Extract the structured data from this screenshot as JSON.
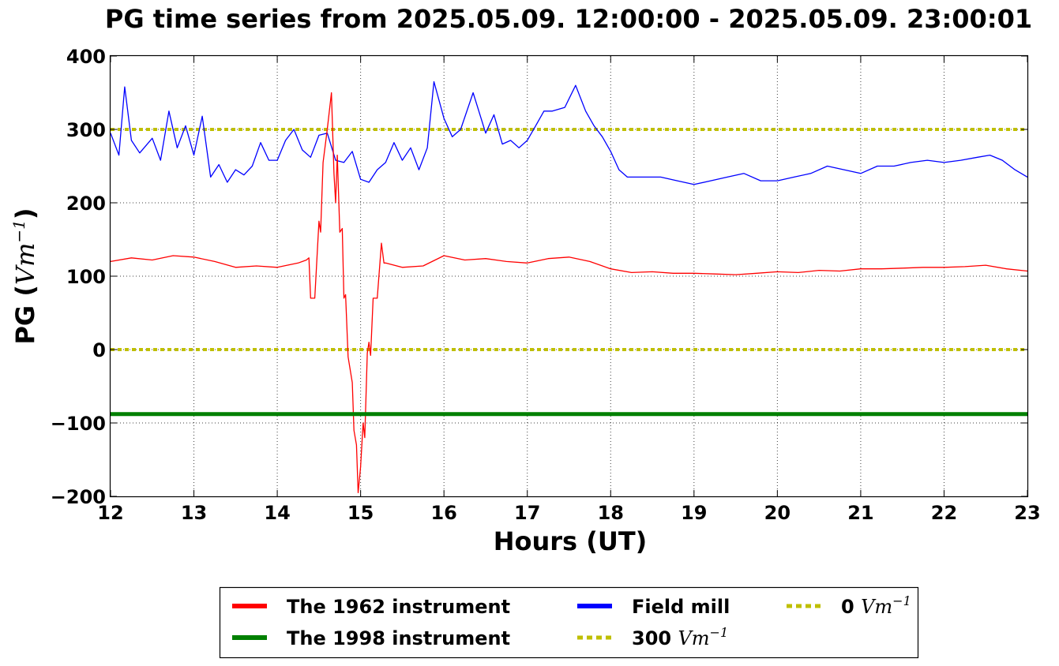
{
  "chart_data": {
    "type": "line",
    "title": "PG time series from 2025.05.09. 12:00:00 - 2025.05.09. 23:00:01",
    "xlabel": "Hours (UT)",
    "ylabel_text": "PG (",
    "ylabel_unit": "Vm",
    "ylabel_exp": "−1",
    "ylabel_close": ")",
    "xlim": [
      12,
      23
    ],
    "ylim": [
      -200,
      400
    ],
    "xticks": [
      12,
      13,
      14,
      15,
      16,
      17,
      18,
      19,
      20,
      21,
      22,
      23
    ],
    "yticks": [
      -200,
      -100,
      0,
      100,
      200,
      300,
      400
    ],
    "ytick_labels": [
      "−200",
      "−100",
      "0",
      "100",
      "200",
      "300",
      "400"
    ],
    "grid": true,
    "legend_placement": "bottom, below axes",
    "series": [
      {
        "name": "The 1962 instrument",
        "color": "#ff0000",
        "x": [
          12.0,
          12.25,
          12.5,
          12.75,
          13.0,
          13.25,
          13.5,
          13.75,
          14.0,
          14.25,
          14.35,
          14.38,
          14.4,
          14.45,
          14.5,
          14.52,
          14.55,
          14.6,
          14.65,
          14.68,
          14.7,
          14.72,
          14.75,
          14.78,
          14.8,
          14.82,
          14.85,
          14.9,
          14.92,
          14.95,
          14.97,
          15.0,
          15.03,
          15.05,
          15.08,
          15.1,
          15.12,
          15.15,
          15.18,
          15.2,
          15.25,
          15.28,
          15.3,
          15.5,
          15.75,
          16.0,
          16.25,
          16.5,
          16.75,
          17.0,
          17.25,
          17.5,
          17.75,
          18.0,
          18.25,
          18.5,
          18.75,
          19.0,
          19.25,
          19.5,
          19.75,
          20.0,
          20.25,
          20.5,
          20.75,
          21.0,
          21.25,
          21.5,
          21.75,
          22.0,
          22.25,
          22.5,
          22.75,
          23.0
        ],
        "values": [
          120,
          125,
          122,
          128,
          126,
          120,
          112,
          114,
          112,
          118,
          122,
          125,
          70,
          70,
          175,
          160,
          255,
          300,
          350,
          240,
          200,
          265,
          160,
          165,
          70,
          75,
          -10,
          -45,
          -110,
          -130,
          -195,
          -160,
          -100,
          -120,
          -5,
          10,
          -8,
          70,
          70,
          70,
          145,
          118,
          118,
          112,
          114,
          128,
          122,
          124,
          120,
          118,
          124,
          126,
          120,
          110,
          105,
          106,
          104,
          104,
          103,
          102,
          104,
          106,
          105,
          108,
          107,
          110,
          110,
          111,
          112,
          112,
          113,
          115,
          110,
          107
        ]
      },
      {
        "name": "The 1998 instrument",
        "color": "#008000",
        "x": [
          12.0,
          23.0
        ],
        "values": [
          -88,
          -88
        ]
      },
      {
        "name": "Field mill",
        "color": "#0000ff",
        "x": [
          12.0,
          12.1,
          12.17,
          12.25,
          12.35,
          12.5,
          12.6,
          12.7,
          12.8,
          12.9,
          13.0,
          13.1,
          13.2,
          13.3,
          13.4,
          13.5,
          13.6,
          13.7,
          13.8,
          13.9,
          14.0,
          14.1,
          14.2,
          14.3,
          14.4,
          14.5,
          14.6,
          14.7,
          14.8,
          14.9,
          15.0,
          15.1,
          15.2,
          15.3,
          15.4,
          15.5,
          15.6,
          15.7,
          15.8,
          15.88,
          16.0,
          16.1,
          16.2,
          16.35,
          16.5,
          16.6,
          16.7,
          16.8,
          16.9,
          17.0,
          17.1,
          17.2,
          17.3,
          17.45,
          17.58,
          17.7,
          17.8,
          17.9,
          18.0,
          18.1,
          18.2,
          18.4,
          18.6,
          18.8,
          19.0,
          19.2,
          19.4,
          19.6,
          19.8,
          20.0,
          20.2,
          20.4,
          20.6,
          20.8,
          21.0,
          21.2,
          21.4,
          21.6,
          21.8,
          22.0,
          22.2,
          22.4,
          22.55,
          22.7,
          22.85,
          23.0
        ],
        "values": [
          295,
          265,
          358,
          285,
          268,
          288,
          258,
          325,
          275,
          305,
          265,
          318,
          235,
          252,
          228,
          245,
          238,
          250,
          282,
          258,
          258,
          285,
          300,
          272,
          262,
          292,
          295,
          258,
          255,
          270,
          232,
          228,
          245,
          255,
          282,
          258,
          275,
          245,
          275,
          365,
          315,
          290,
          300,
          350,
          295,
          320,
          280,
          285,
          275,
          285,
          305,
          325,
          325,
          330,
          360,
          325,
          305,
          290,
          270,
          245,
          235,
          235,
          235,
          230,
          225,
          230,
          235,
          240,
          230,
          230,
          235,
          240,
          250,
          245,
          240,
          250,
          250,
          255,
          258,
          255,
          258,
          262,
          265,
          258,
          245,
          235
        ]
      },
      {
        "name": "300 Vm⁻¹",
        "color": "#bfbf00",
        "x": [
          12.0,
          23.0
        ],
        "values": [
          300,
          300
        ]
      },
      {
        "name": "0 Vm⁻¹",
        "color": "#bfbf00",
        "x": [
          12.0,
          23.0
        ],
        "values": [
          0,
          0
        ]
      }
    ],
    "legend": [
      {
        "prefix": "The 1962 instrument",
        "unit": "",
        "color": "#ff0000",
        "style": "solid"
      },
      {
        "prefix": "The 1998 instrument",
        "unit": "",
        "color": "#008000",
        "style": "solid"
      },
      {
        "prefix": "Field mill",
        "unit": "",
        "color": "#0000ff",
        "style": "solid"
      },
      {
        "prefix": "300",
        "unit": "Vm",
        "color": "#bfbf00",
        "style": "dotted"
      },
      {
        "prefix": "0",
        "unit": "Vm",
        "color": "#bfbf00",
        "style": "dotted"
      }
    ],
    "legend_unit_exp": "−1"
  }
}
